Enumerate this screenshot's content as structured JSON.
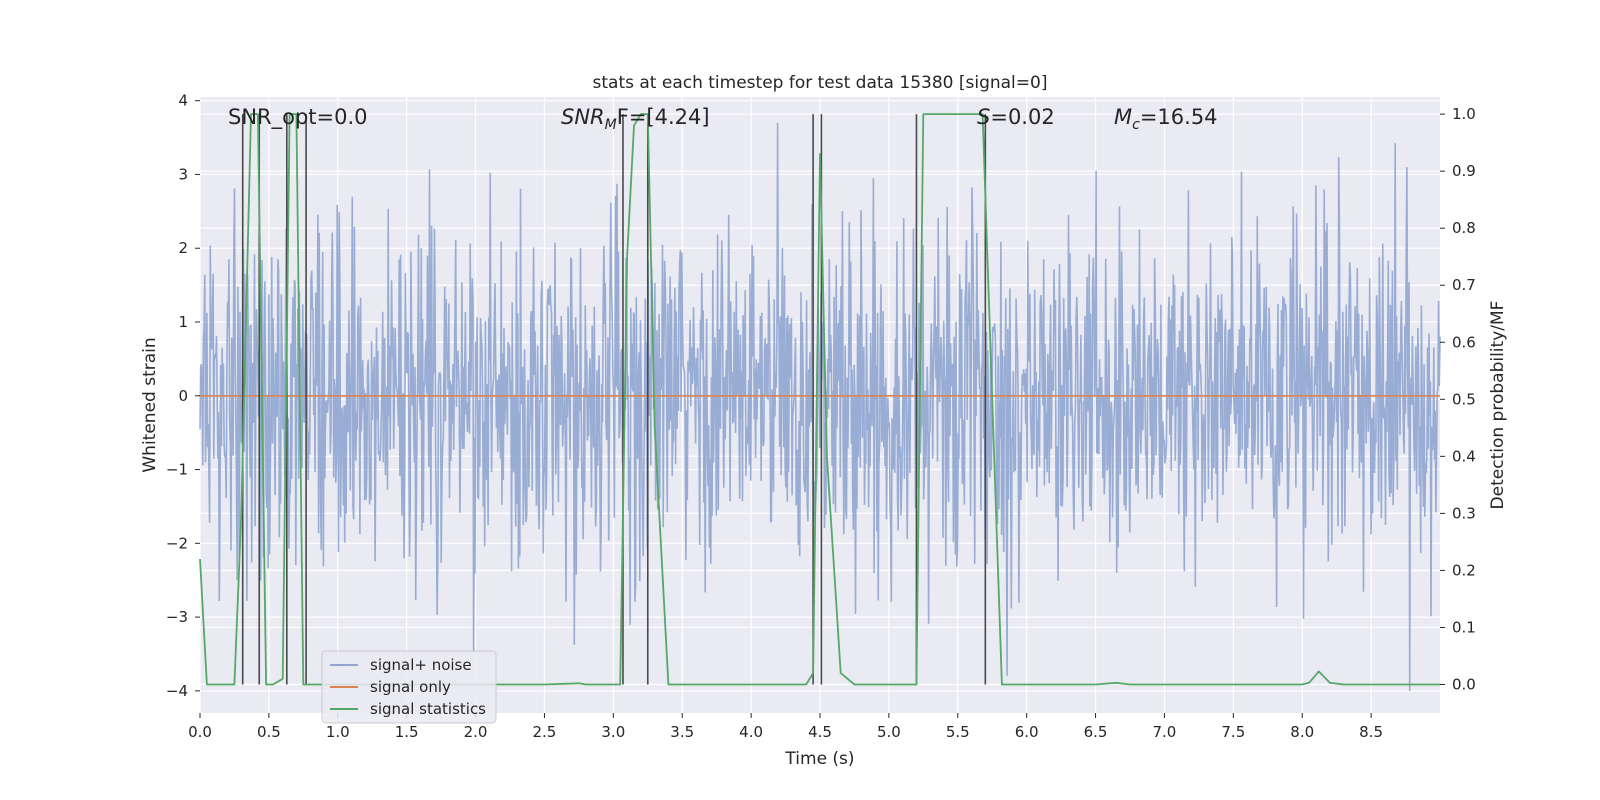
{
  "chart_data": {
    "type": "line",
    "title": "stats at each timestep for test data 15380 [signal=0]",
    "xlabel": "Time (s)",
    "ylabel": "Whitened strain",
    "y2label": "Detection probability/MF",
    "xlim": [
      0,
      9
    ],
    "ylim": [
      -4.3,
      4.05
    ],
    "y2lim": [
      -0.05,
      1.03
    ],
    "grid": true,
    "xticks": [
      0.0,
      0.5,
      1.0,
      1.5,
      2.0,
      2.5,
      3.0,
      3.5,
      4.0,
      4.5,
      5.0,
      5.5,
      6.0,
      6.5,
      7.0,
      7.5,
      8.0,
      8.5
    ],
    "xtick_labels": [
      "0.0",
      "0.5",
      "1.0",
      "1.5",
      "2.0",
      "2.5",
      "3.0",
      "3.5",
      "4.0",
      "4.5",
      "5.0",
      "5.5",
      "6.0",
      "6.5",
      "7.0",
      "7.5",
      "8.0",
      "8.5"
    ],
    "yticks": [
      4,
      3,
      2,
      1,
      0,
      -1,
      -2,
      -3,
      -4
    ],
    "ytick_labels": [
      "4",
      "3",
      "2",
      "1",
      "0",
      "−1",
      "−2",
      "−3",
      "−4"
    ],
    "y2ticks": [
      1.0,
      0.9,
      0.8,
      0.7,
      0.6,
      0.5,
      0.4,
      0.3,
      0.2,
      0.1,
      0.0
    ],
    "y2tick_labels": [
      "1.0",
      "0.9",
      "0.8",
      "0.7",
      "0.6",
      "0.5",
      "0.4",
      "0.3",
      "0.2",
      "0.1",
      "0.0"
    ],
    "annotations": {
      "snr_opt": "SNR_opt=0.0",
      "snr_mf_main": "SNR",
      "snr_mf_sub": "M",
      "snr_mf_rest": "F=[4.24]",
      "s_label": "S",
      "s_value": "=0.02",
      "mc_label": "M",
      "mc_sub": "c",
      "mc_value": "=16.54"
    },
    "legend": {
      "position": "lower-left",
      "entries": [
        "signal+ noise",
        "signal only",
        "signal statistics"
      ]
    },
    "series": [
      {
        "name": "signal+ noise",
        "axis": "left",
        "color": "#8fa5d0",
        "noise_description": "dense whitened noise band roughly between -1.8 and 1.4 with spikes to about +/-3.7",
        "samples": 1800
      },
      {
        "name": "signal only",
        "axis": "left",
        "color": "#dd8452",
        "x": [
          0,
          9
        ],
        "y": [
          0,
          0
        ]
      },
      {
        "name": "signal statistics",
        "axis": "right",
        "color": "#55a868",
        "x": [
          0.0,
          0.05,
          0.25,
          0.3,
          0.37,
          0.42,
          0.48,
          0.53,
          0.6,
          0.65,
          0.7,
          0.75,
          0.8,
          0.85,
          1.0,
          1.5,
          2.0,
          2.5,
          2.75,
          2.8,
          3.05,
          3.1,
          3.15,
          3.2,
          3.25,
          3.3,
          3.4,
          3.5,
          4.0,
          4.4,
          4.45,
          4.5,
          4.55,
          4.65,
          4.75,
          4.9,
          5.0,
          5.2,
          5.25,
          5.5,
          5.68,
          5.75,
          5.82,
          6.0,
          6.5,
          6.65,
          6.75,
          7.0,
          7.5,
          8.0,
          8.05,
          8.12,
          8.2,
          8.3,
          9.0
        ],
        "y": [
          0.22,
          0.0,
          0.0,
          0.3,
          1.0,
          1.0,
          0.0,
          0.0,
          0.01,
          1.0,
          1.0,
          0.0,
          0.0,
          0.0,
          0.0,
          0.0,
          0.0,
          0.0,
          0.002,
          0.0,
          0.0,
          0.75,
          0.98,
          1.0,
          1.0,
          0.45,
          0.0,
          0.0,
          0.0,
          0.0,
          0.02,
          0.93,
          0.4,
          0.02,
          0.0,
          0.0,
          0.0,
          0.0,
          1.0,
          1.0,
          1.0,
          0.5,
          0.0,
          0.0,
          0.0,
          0.003,
          0.0,
          0.0,
          0.0,
          0.0,
          0.003,
          0.023,
          0.003,
          0.0,
          0.0
        ]
      }
    ],
    "vertical_markers": {
      "color": "#4a4a4a",
      "y2_range": [
        0.0,
        1.0
      ],
      "x": [
        0.31,
        0.43,
        0.63,
        0.77,
        3.07,
        3.25,
        4.45,
        4.51,
        5.2,
        5.7
      ]
    },
    "colors": {
      "plot_bg": "#eaeaf2",
      "grid": "#ffffff",
      "noise": "#8fa5d0",
      "signal_only": "#dd8452",
      "statistics": "#55a868",
      "markers": "#4a4a4a"
    }
  }
}
